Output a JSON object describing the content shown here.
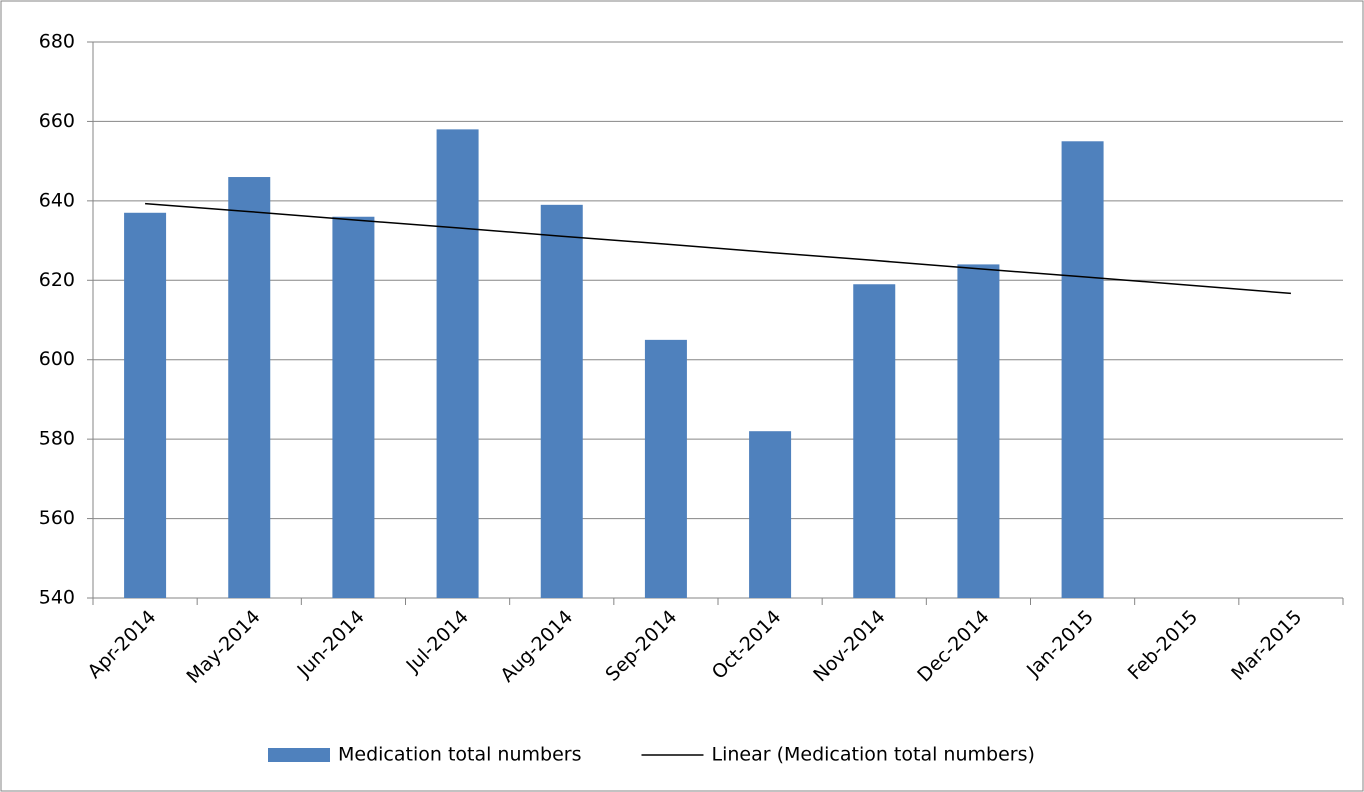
{
  "chart_data": {
    "type": "bar",
    "categories": [
      "Apr-2014",
      "May-2014",
      "Jun-2014",
      "Jul-2014",
      "Aug-2014",
      "Sep-2014",
      "Oct-2014",
      "Nov-2014",
      "Dec-2014",
      "Jan-2015",
      "Feb-2015",
      "Mar-2015"
    ],
    "series": [
      {
        "name": "Medication total numbers",
        "color": "#4f81bd",
        "type": "bar",
        "values": [
          637,
          646,
          636,
          658,
          639,
          605,
          582,
          619,
          624,
          655,
          null,
          null
        ]
      },
      {
        "name": "Linear (Medication total numbers)",
        "color": "#000000",
        "type": "line",
        "values": [
          639.3,
          637.3,
          635.2,
          633.2,
          631.1,
          629.1,
          627.0,
          625.0,
          622.9,
          620.9,
          618.8,
          616.7
        ]
      }
    ],
    "ylim": [
      540,
      680
    ],
    "yticks": [
      540,
      560,
      580,
      600,
      620,
      640,
      660,
      680
    ],
    "grid": true,
    "legend": "bottom"
  }
}
